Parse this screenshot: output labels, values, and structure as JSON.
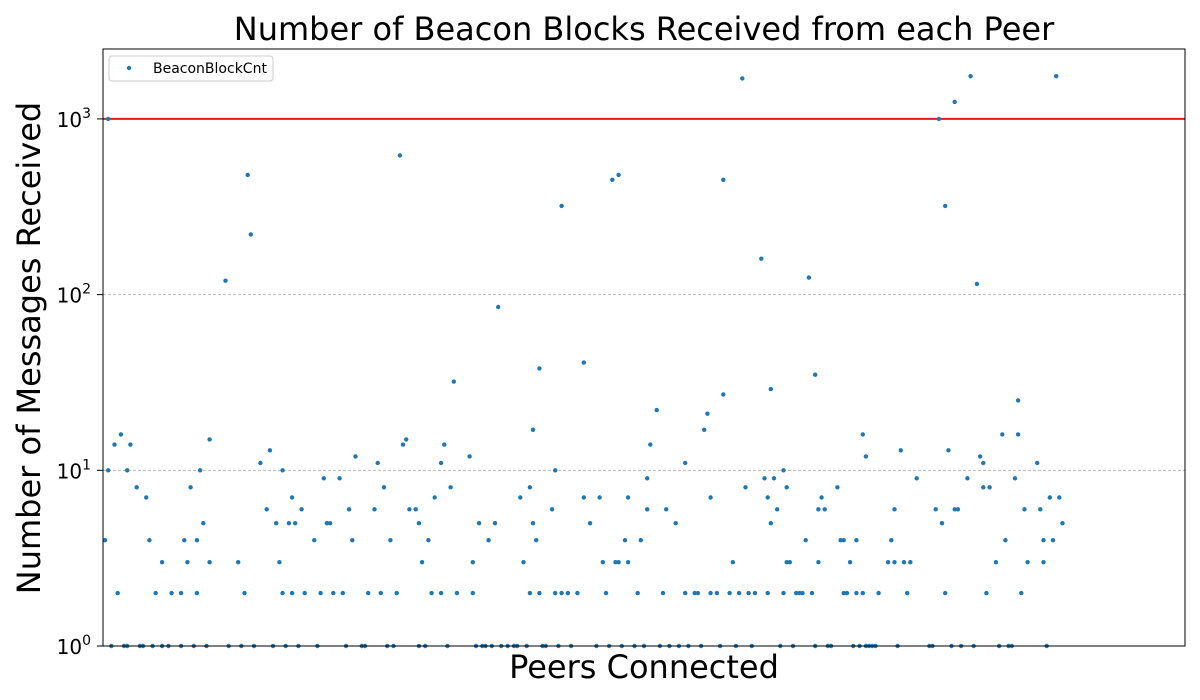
{
  "chart_data": {
    "type": "scatter",
    "title": "Number of Beacon Blocks Received from each Peer",
    "xlabel": "Peers Connected",
    "ylabel": "Number of Messages Received",
    "yscale": "log",
    "ylim": [
      1,
      2500
    ],
    "xlim": [
      0,
      340
    ],
    "ytick_values": [
      1,
      10,
      100,
      1000
    ],
    "ytick_labels": [
      "10",
      "10",
      "10",
      "10"
    ],
    "ytick_exponents": [
      "0",
      "1",
      "2",
      "3"
    ],
    "threshold_line": {
      "value": 1000,
      "color": "#e41a1c"
    },
    "grid": "horizontal dashed at major y ticks",
    "legend": {
      "placement": "top-left"
    },
    "series": [
      {
        "name": "BeaconBlockCnt",
        "color": "#1f77b4",
        "points": [
          [
            0,
            4
          ],
          [
            1,
            1000
          ],
          [
            1,
            10
          ],
          [
            2,
            1
          ],
          [
            3,
            14
          ],
          [
            4,
            2
          ],
          [
            5,
            16
          ],
          [
            6,
            1
          ],
          [
            7,
            10
          ],
          [
            7,
            1
          ],
          [
            8,
            14
          ],
          [
            10,
            8
          ],
          [
            11,
            1
          ],
          [
            12,
            1
          ],
          [
            13,
            7
          ],
          [
            14,
            4
          ],
          [
            15,
            1
          ],
          [
            16,
            2
          ],
          [
            18,
            1
          ],
          [
            18,
            3
          ],
          [
            20,
            1
          ],
          [
            21,
            2
          ],
          [
            24,
            1
          ],
          [
            24,
            2
          ],
          [
            25,
            4
          ],
          [
            26,
            3
          ],
          [
            27,
            8
          ],
          [
            28,
            1
          ],
          [
            29,
            2
          ],
          [
            29,
            4
          ],
          [
            30,
            10
          ],
          [
            31,
            5
          ],
          [
            32,
            1
          ],
          [
            33,
            3
          ],
          [
            33,
            15
          ],
          [
            38,
            120
          ],
          [
            39,
            1
          ],
          [
            42,
            3
          ],
          [
            43,
            1
          ],
          [
            44,
            2
          ],
          [
            45,
            480
          ],
          [
            46,
            220
          ],
          [
            47,
            1
          ],
          [
            49,
            11
          ],
          [
            51,
            6
          ],
          [
            52,
            13
          ],
          [
            53,
            1
          ],
          [
            54,
            5
          ],
          [
            55,
            3
          ],
          [
            56,
            10
          ],
          [
            56,
            2
          ],
          [
            57,
            1
          ],
          [
            58,
            5
          ],
          [
            59,
            7
          ],
          [
            59,
            2
          ],
          [
            60,
            5
          ],
          [
            61,
            1
          ],
          [
            62,
            6
          ],
          [
            63,
            2
          ],
          [
            66,
            4
          ],
          [
            67,
            1
          ],
          [
            68,
            2
          ],
          [
            69,
            9
          ],
          [
            70,
            5
          ],
          [
            71,
            5
          ],
          [
            72,
            2
          ],
          [
            74,
            9
          ],
          [
            75,
            2
          ],
          [
            76,
            1
          ],
          [
            77,
            6
          ],
          [
            78,
            4
          ],
          [
            79,
            12
          ],
          [
            81,
            1
          ],
          [
            82,
            1
          ],
          [
            83,
            2
          ],
          [
            85,
            6
          ],
          [
            86,
            11
          ],
          [
            87,
            2
          ],
          [
            88,
            8
          ],
          [
            89,
            1
          ],
          [
            90,
            4
          ],
          [
            91,
            1
          ],
          [
            92,
            2
          ],
          [
            93,
            620
          ],
          [
            94,
            14
          ],
          [
            95,
            15
          ],
          [
            96,
            6
          ],
          [
            98,
            6
          ],
          [
            99,
            1
          ],
          [
            99,
            5
          ],
          [
            100,
            3
          ],
          [
            101,
            1
          ],
          [
            102,
            4
          ],
          [
            103,
            2
          ],
          [
            104,
            7
          ],
          [
            106,
            11
          ],
          [
            106,
            2
          ],
          [
            107,
            14
          ],
          [
            108,
            1
          ],
          [
            109,
            8
          ],
          [
            110,
            32
          ],
          [
            111,
            2
          ],
          [
            115,
            12
          ],
          [
            116,
            2
          ],
          [
            116,
            3
          ],
          [
            117,
            1
          ],
          [
            118,
            5
          ],
          [
            119,
            1
          ],
          [
            120,
            1
          ],
          [
            121,
            4
          ],
          [
            122,
            1
          ],
          [
            123,
            5
          ],
          [
            124,
            85
          ],
          [
            125,
            1
          ],
          [
            127,
            1
          ],
          [
            129,
            1
          ],
          [
            130,
            1
          ],
          [
            131,
            7
          ],
          [
            132,
            3
          ],
          [
            133,
            1
          ],
          [
            134,
            2
          ],
          [
            134,
            8
          ],
          [
            135,
            5
          ],
          [
            135,
            17
          ],
          [
            136,
            4
          ],
          [
            137,
            38
          ],
          [
            137,
            2
          ],
          [
            138,
            1
          ],
          [
            139,
            1
          ],
          [
            141,
            6
          ],
          [
            142,
            2
          ],
          [
            142,
            10
          ],
          [
            143,
            1
          ],
          [
            144,
            2
          ],
          [
            144,
            320
          ],
          [
            146,
            2
          ],
          [
            147,
            1
          ],
          [
            149,
            2
          ],
          [
            151,
            7
          ],
          [
            151,
            41
          ],
          [
            153,
            5
          ],
          [
            155,
            1
          ],
          [
            156,
            7
          ],
          [
            157,
            3
          ],
          [
            158,
            2
          ],
          [
            159,
            1
          ],
          [
            160,
            450
          ],
          [
            161,
            3
          ],
          [
            162,
            3
          ],
          [
            162,
            480
          ],
          [
            163,
            1
          ],
          [
            164,
            4
          ],
          [
            165,
            7
          ],
          [
            165,
            3
          ],
          [
            167,
            1
          ],
          [
            168,
            2
          ],
          [
            169,
            4
          ],
          [
            170,
            1
          ],
          [
            171,
            9
          ],
          [
            171,
            6
          ],
          [
            172,
            14
          ],
          [
            174,
            22
          ],
          [
            175,
            1
          ],
          [
            176,
            2
          ],
          [
            177,
            6
          ],
          [
            178,
            1
          ],
          [
            180,
            5
          ],
          [
            181,
            1
          ],
          [
            183,
            2
          ],
          [
            183,
            11
          ],
          [
            184,
            1
          ],
          [
            186,
            2
          ],
          [
            187,
            2
          ],
          [
            188,
            1
          ],
          [
            189,
            17
          ],
          [
            190,
            21
          ],
          [
            191,
            2
          ],
          [
            191,
            7
          ],
          [
            193,
            2
          ],
          [
            194,
            1
          ],
          [
            195,
            27
          ],
          [
            195,
            450
          ],
          [
            197,
            2
          ],
          [
            198,
            3
          ],
          [
            199,
            1
          ],
          [
            200,
            2
          ],
          [
            201,
            1700
          ],
          [
            202,
            8
          ],
          [
            203,
            2
          ],
          [
            204,
            1
          ],
          [
            205,
            2
          ],
          [
            207,
            160
          ],
          [
            208,
            9
          ],
          [
            209,
            2
          ],
          [
            209,
            7
          ],
          [
            210,
            5
          ],
          [
            210,
            29
          ],
          [
            211,
            9
          ],
          [
            212,
            6
          ],
          [
            213,
            1
          ],
          [
            214,
            10
          ],
          [
            214,
            2
          ],
          [
            215,
            8
          ],
          [
            215,
            3
          ],
          [
            216,
            3
          ],
          [
            217,
            1
          ],
          [
            218,
            2
          ],
          [
            219,
            2
          ],
          [
            220,
            2
          ],
          [
            221,
            4
          ],
          [
            222,
            125
          ],
          [
            223,
            2
          ],
          [
            224,
            35
          ],
          [
            224,
            1
          ],
          [
            225,
            3
          ],
          [
            225,
            6
          ],
          [
            226,
            7
          ],
          [
            227,
            6
          ],
          [
            228,
            1
          ],
          [
            229,
            1
          ],
          [
            231,
            8
          ],
          [
            232,
            4
          ],
          [
            233,
            4
          ],
          [
            233,
            2
          ],
          [
            234,
            2
          ],
          [
            235,
            3
          ],
          [
            236,
            1
          ],
          [
            237,
            4
          ],
          [
            237,
            2
          ],
          [
            238,
            1
          ],
          [
            239,
            2
          ],
          [
            239,
            16
          ],
          [
            240,
            12
          ],
          [
            240,
            1
          ],
          [
            241,
            1
          ],
          [
            242,
            1
          ],
          [
            243,
            1
          ],
          [
            244,
            2
          ],
          [
            247,
            3
          ],
          [
            248,
            4
          ],
          [
            249,
            6
          ],
          [
            249,
            3
          ],
          [
            250,
            1
          ],
          [
            251,
            13
          ],
          [
            252,
            3
          ],
          [
            253,
            2
          ],
          [
            254,
            3
          ],
          [
            256,
            9
          ],
          [
            260,
            1
          ],
          [
            261,
            1
          ],
          [
            262,
            6
          ],
          [
            263,
            1000
          ],
          [
            264,
            5
          ],
          [
            265,
            320
          ],
          [
            265,
            2
          ],
          [
            266,
            13
          ],
          [
            267,
            1
          ],
          [
            268,
            6
          ],
          [
            268,
            1250
          ],
          [
            269,
            6
          ],
          [
            270,
            1
          ],
          [
            272,
            9
          ],
          [
            273,
            1750
          ],
          [
            274,
            1
          ],
          [
            275,
            115
          ],
          [
            276,
            12
          ],
          [
            277,
            11
          ],
          [
            277,
            8
          ],
          [
            278,
            2
          ],
          [
            279,
            8
          ],
          [
            281,
            3
          ],
          [
            282,
            1
          ],
          [
            283,
            16
          ],
          [
            284,
            4
          ],
          [
            285,
            1
          ],
          [
            286,
            1
          ],
          [
            287,
            9
          ],
          [
            288,
            25
          ],
          [
            288,
            16
          ],
          [
            289,
            2
          ],
          [
            290,
            6
          ],
          [
            291,
            3
          ],
          [
            294,
            11
          ],
          [
            295,
            6
          ],
          [
            296,
            4
          ],
          [
            296,
            3
          ],
          [
            297,
            1
          ],
          [
            298,
            7
          ],
          [
            299,
            4
          ],
          [
            300,
            1750
          ],
          [
            301,
            7
          ],
          [
            302,
            5
          ]
        ]
      }
    ]
  }
}
